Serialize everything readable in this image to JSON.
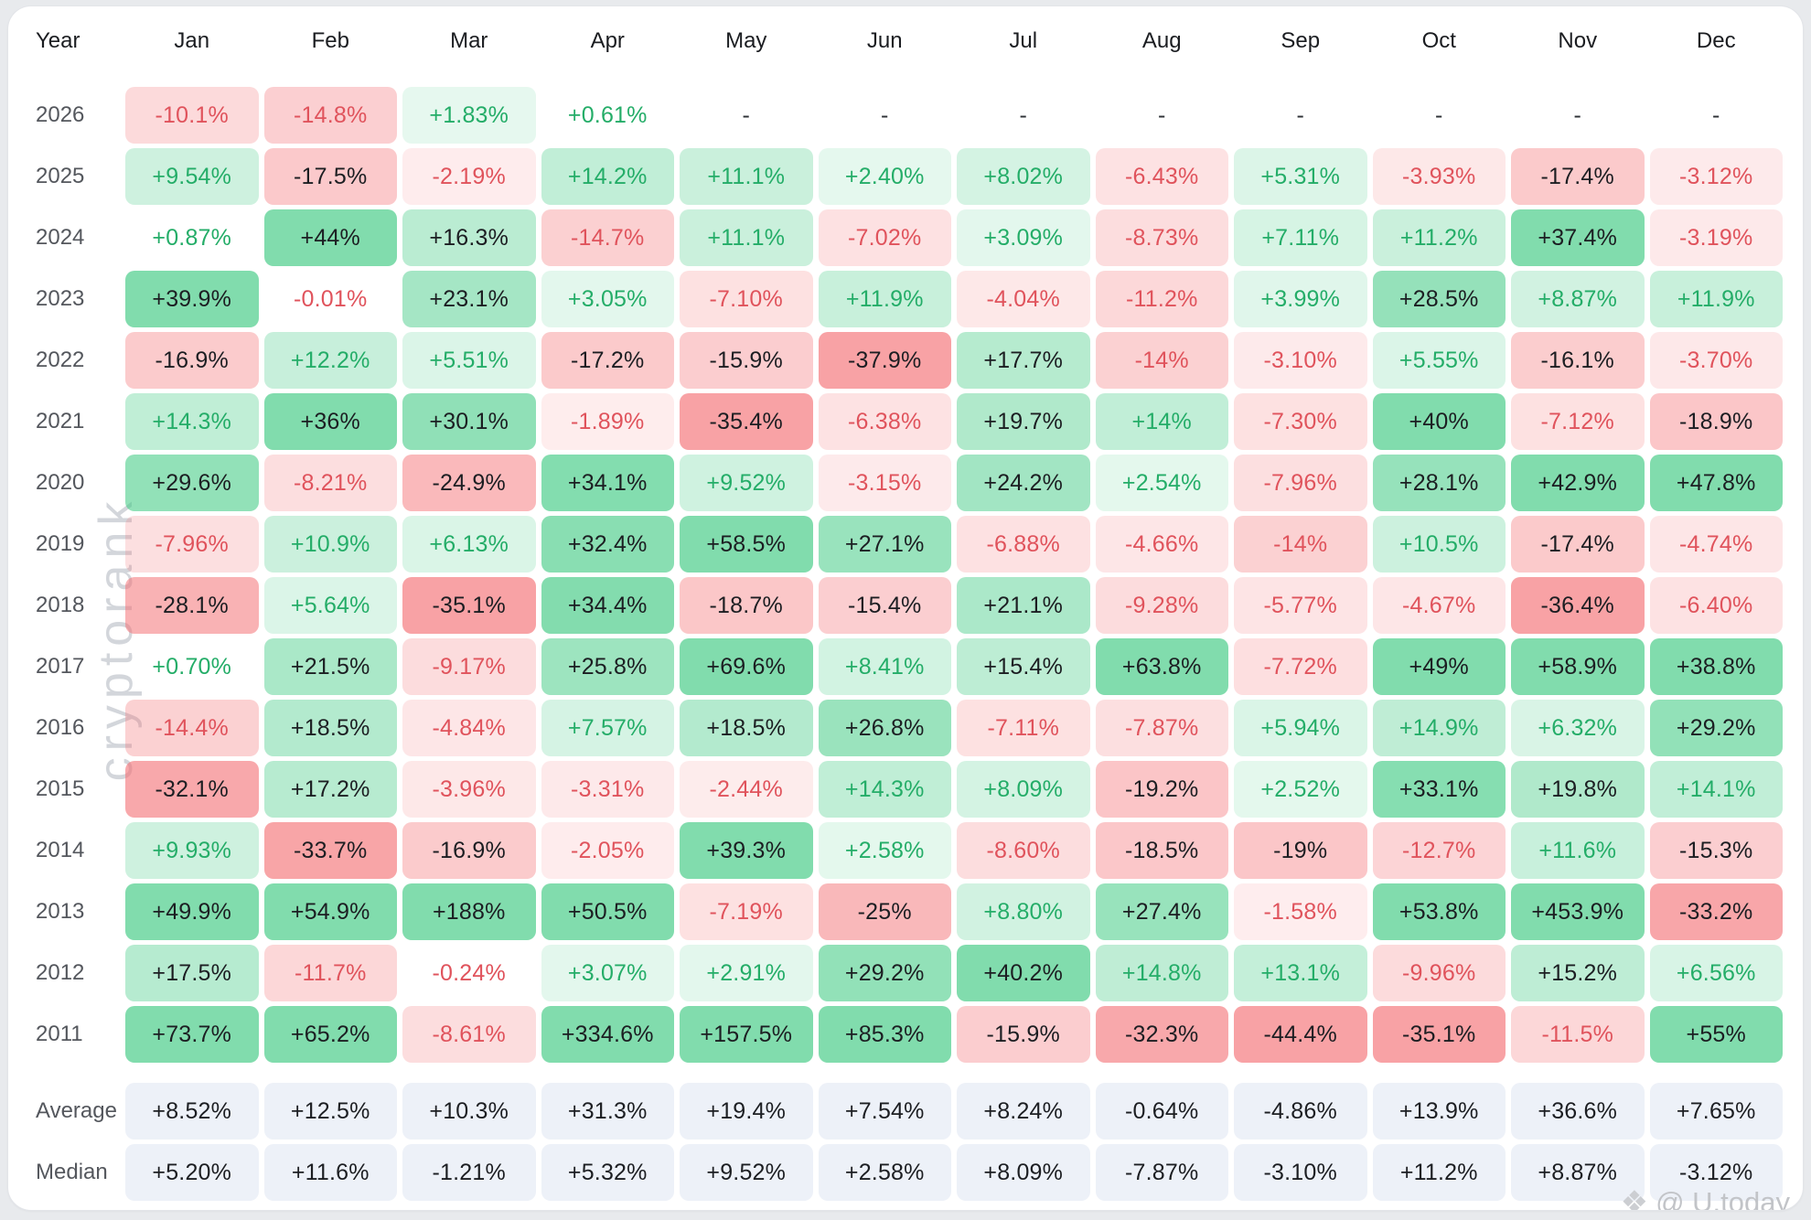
{
  "chart_data": {
    "type": "heatmap",
    "description": "Monthly returns heatmap by year, values in percent",
    "columns": [
      "Year",
      "Jan",
      "Feb",
      "Mar",
      "Apr",
      "May",
      "Jun",
      "Jul",
      "Aug",
      "Sep",
      "Oct",
      "Nov",
      "Dec"
    ],
    "rows": [
      {
        "year": "2026",
        "values": [
          "-10.1%",
          "-14.8%",
          "+1.83%",
          "+0.61%",
          "-",
          "-",
          "-",
          "-",
          "-",
          "-",
          "-",
          "-"
        ]
      },
      {
        "year": "2025",
        "values": [
          "+9.54%",
          "-17.5%",
          "-2.19%",
          "+14.2%",
          "+11.1%",
          "+2.40%",
          "+8.02%",
          "-6.43%",
          "+5.31%",
          "-3.93%",
          "-17.4%",
          "-3.12%"
        ]
      },
      {
        "year": "2024",
        "values": [
          "+0.87%",
          "+44%",
          "+16.3%",
          "-14.7%",
          "+11.1%",
          "-7.02%",
          "+3.09%",
          "-8.73%",
          "+7.11%",
          "+11.2%",
          "+37.4%",
          "-3.19%"
        ]
      },
      {
        "year": "2023",
        "values": [
          "+39.9%",
          "-0.01%",
          "+23.1%",
          "+3.05%",
          "-7.10%",
          "+11.9%",
          "-4.04%",
          "-11.2%",
          "+3.99%",
          "+28.5%",
          "+8.87%",
          "+11.9%"
        ]
      },
      {
        "year": "2022",
        "values": [
          "-16.9%",
          "+12.2%",
          "+5.51%",
          "-17.2%",
          "-15.9%",
          "-37.9%",
          "+17.7%",
          "-14%",
          "-3.10%",
          "+5.55%",
          "-16.1%",
          "-3.70%"
        ]
      },
      {
        "year": "2021",
        "values": [
          "+14.3%",
          "+36%",
          "+30.1%",
          "-1.89%",
          "-35.4%",
          "-6.38%",
          "+19.7%",
          "+14%",
          "-7.30%",
          "+40%",
          "-7.12%",
          "-18.9%"
        ]
      },
      {
        "year": "2020",
        "values": [
          "+29.6%",
          "-8.21%",
          "-24.9%",
          "+34.1%",
          "+9.52%",
          "-3.15%",
          "+24.2%",
          "+2.54%",
          "-7.96%",
          "+28.1%",
          "+42.9%",
          "+47.8%"
        ]
      },
      {
        "year": "2019",
        "values": [
          "-7.96%",
          "+10.9%",
          "+6.13%",
          "+32.4%",
          "+58.5%",
          "+27.1%",
          "-6.88%",
          "-4.66%",
          "-14%",
          "+10.5%",
          "-17.4%",
          "-4.74%"
        ]
      },
      {
        "year": "2018",
        "values": [
          "-28.1%",
          "+5.64%",
          "-35.1%",
          "+34.4%",
          "-18.7%",
          "-15.4%",
          "+21.1%",
          "-9.28%",
          "-5.77%",
          "-4.67%",
          "-36.4%",
          "-6.40%"
        ]
      },
      {
        "year": "2017",
        "values": [
          "+0.70%",
          "+21.5%",
          "-9.17%",
          "+25.8%",
          "+69.6%",
          "+8.41%",
          "+15.4%",
          "+63.8%",
          "-7.72%",
          "+49%",
          "+58.9%",
          "+38.8%"
        ]
      },
      {
        "year": "2016",
        "values": [
          "-14.4%",
          "+18.5%",
          "-4.84%",
          "+7.57%",
          "+18.5%",
          "+26.8%",
          "-7.11%",
          "-7.87%",
          "+5.94%",
          "+14.9%",
          "+6.32%",
          "+29.2%"
        ]
      },
      {
        "year": "2015",
        "values": [
          "-32.1%",
          "+17.2%",
          "-3.96%",
          "-3.31%",
          "-2.44%",
          "+14.3%",
          "+8.09%",
          "-19.2%",
          "+2.52%",
          "+33.1%",
          "+19.8%",
          "+14.1%"
        ]
      },
      {
        "year": "2014",
        "values": [
          "+9.93%",
          "-33.7%",
          "-16.9%",
          "-2.05%",
          "+39.3%",
          "+2.58%",
          "-8.60%",
          "-18.5%",
          "-19%",
          "-12.7%",
          "+11.6%",
          "-15.3%"
        ]
      },
      {
        "year": "2013",
        "values": [
          "+49.9%",
          "+54.9%",
          "+188%",
          "+50.5%",
          "-7.19%",
          "-25%",
          "+8.80%",
          "+27.4%",
          "-1.58%",
          "+53.8%",
          "+453.9%",
          "-33.2%"
        ]
      },
      {
        "year": "2012",
        "values": [
          "+17.5%",
          "-11.7%",
          "-0.24%",
          "+3.07%",
          "+2.91%",
          "+29.2%",
          "+40.2%",
          "+14.8%",
          "+13.1%",
          "-9.96%",
          "+15.2%",
          "+6.56%"
        ]
      },
      {
        "year": "2011",
        "values": [
          "+73.7%",
          "+65.2%",
          "-8.61%",
          "+334.6%",
          "+157.5%",
          "+85.3%",
          "-15.9%",
          "-32.3%",
          "-44.4%",
          "-35.1%",
          "-11.5%",
          "+55%"
        ]
      }
    ],
    "stats_rows": [
      {
        "label": "Average",
        "values": [
          "+8.52%",
          "+12.5%",
          "+10.3%",
          "+31.3%",
          "+19.4%",
          "+7.54%",
          "+8.24%",
          "-0.64%",
          "-4.86%",
          "+13.9%",
          "+36.6%",
          "+7.65%"
        ]
      },
      {
        "label": "Median",
        "values": [
          "+5.20%",
          "+11.6%",
          "-1.21%",
          "+5.32%",
          "+9.52%",
          "+2.58%",
          "+8.09%",
          "-7.87%",
          "-3.10%",
          "+11.2%",
          "+8.87%",
          "-3.12%"
        ]
      }
    ],
    "layout": {
      "legend": "none",
      "grid": "off",
      "missing_value_marker": "-"
    }
  },
  "colors": {
    "positive_base_rgb": "64,202,131",
    "negative_base_rgb": "244,114,118",
    "positive_text": "#24ad68",
    "negative_text": "#e0535c",
    "dark_text": "#1c1e22",
    "stats_cell_bg": "#edf1f8",
    "header_text": "#1b1d21",
    "year_text": "#54575d"
  },
  "watermarks": {
    "side": "cryptorank",
    "footer": "@ U.today"
  }
}
